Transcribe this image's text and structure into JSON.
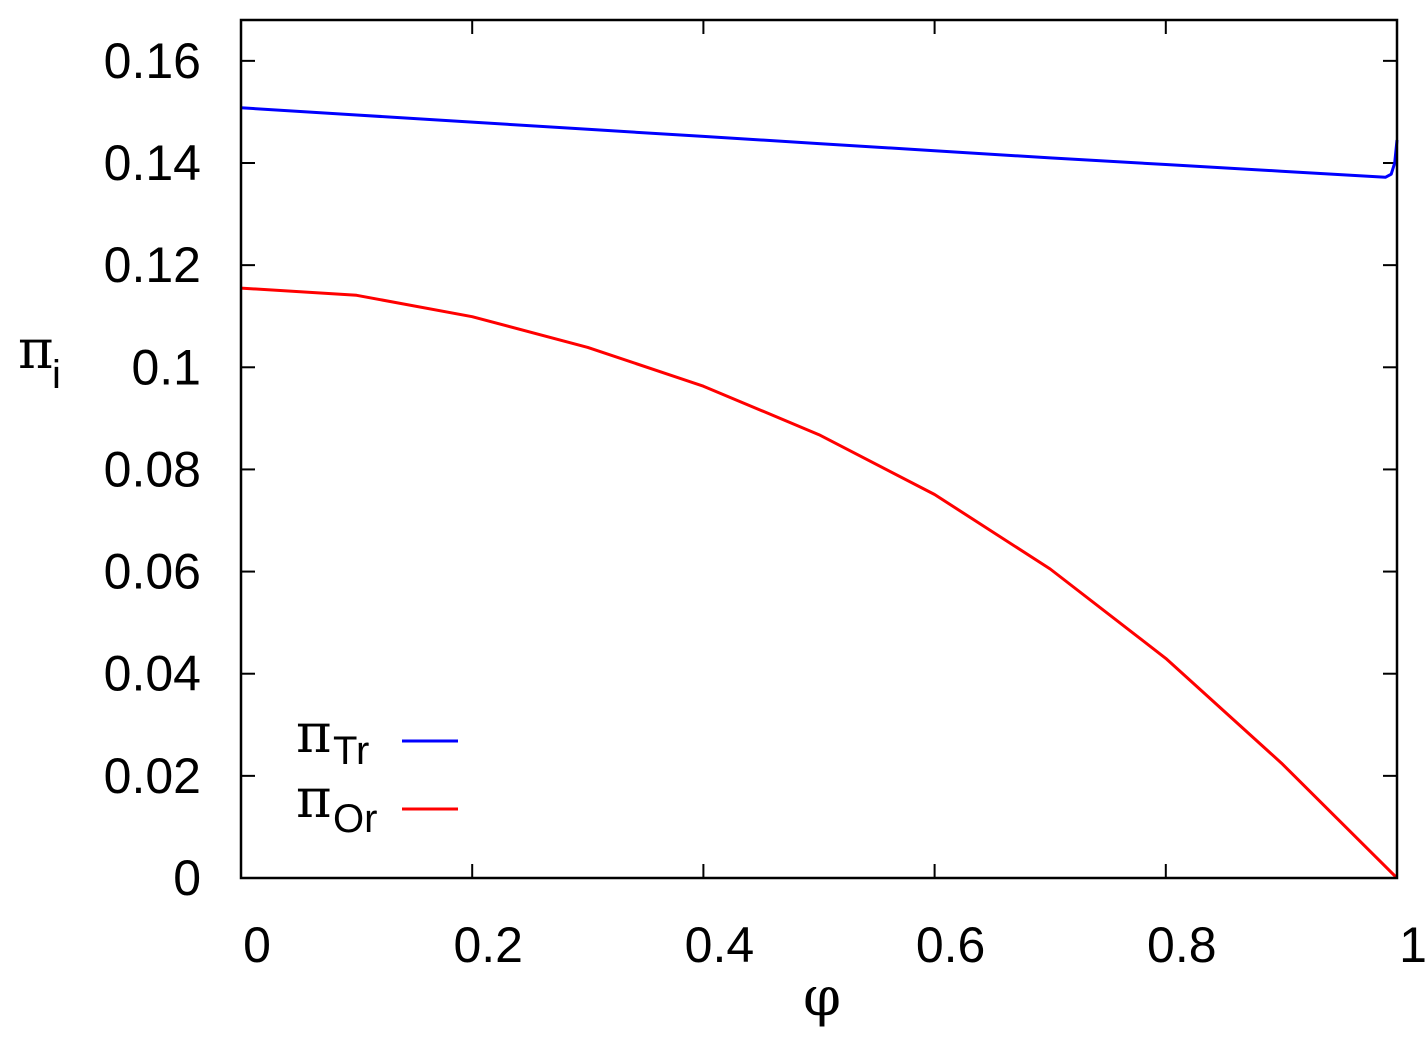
{
  "chart_data": {
    "type": "line",
    "xlabel": "φ",
    "ylabel": {
      "symbol": "π",
      "subscript": "i"
    },
    "xlim": [
      0,
      1
    ],
    "ylim": [
      0,
      0.168
    ],
    "x_ticks": [
      0,
      0.2,
      0.4,
      0.6,
      0.8,
      1
    ],
    "x_tick_labels": [
      "0",
      "0.2",
      "0.4",
      "0.6",
      "0.8",
      "1"
    ],
    "y_ticks": [
      0,
      0.02,
      0.04,
      0.06,
      0.08,
      0.1,
      0.12,
      0.14,
      0.16
    ],
    "y_tick_labels": [
      "0",
      "0.02",
      "0.04",
      "0.06",
      "0.08",
      "0.1",
      "0.12",
      "0.14",
      "0.16"
    ],
    "grid": false,
    "legend_position": "bottom-left",
    "series": [
      {
        "name": "πTr",
        "symbol": "π",
        "subscript": "Tr",
        "color": "#0000ff",
        "x": [
          0,
          0.1,
          0.2,
          0.3,
          0.4,
          0.5,
          0.6,
          0.7,
          0.8,
          0.9,
          0.99,
          0.995,
          0.998,
          1.0
        ],
        "y": [
          0.1508,
          0.1494,
          0.148,
          0.1466,
          0.1452,
          0.1438,
          0.1424,
          0.141,
          0.1397,
          0.1384,
          0.1372,
          0.1378,
          0.14,
          0.1445
        ]
      },
      {
        "name": "πOr",
        "symbol": "π",
        "subscript": "Or",
        "color": "#ff0000",
        "x": [
          0,
          0.1,
          0.2,
          0.3,
          0.4,
          0.5,
          0.6,
          0.7,
          0.8,
          0.9,
          1.0
        ],
        "y": [
          0.1155,
          0.1141,
          0.1099,
          0.1039,
          0.0963,
          0.0868,
          0.0751,
          0.0605,
          0.043,
          0.0225,
          0.0
        ]
      }
    ]
  }
}
